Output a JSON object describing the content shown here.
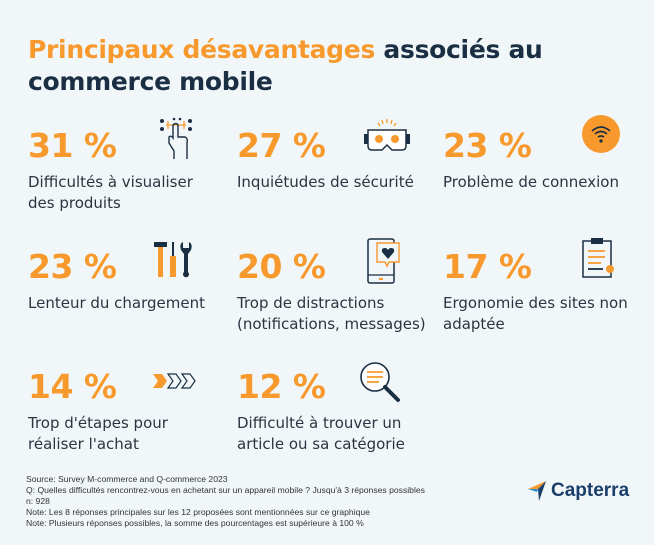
{
  "title": {
    "highlight": "Principaux désavantages",
    "rest_line1": " associés au",
    "line2": "commerce mobile"
  },
  "items": [
    {
      "percent": "31 %",
      "label_line1": "Difficultés à visualiser",
      "label_line2": "des produits",
      "icon": "touch-gesture-icon"
    },
    {
      "percent": "27 %",
      "label_line1": "Inquiétudes de sécurité",
      "label_line2": "",
      "icon": "vr-headset-icon"
    },
    {
      "percent": "23 %",
      "label_line1": "Problème de connexion",
      "label_line2": "",
      "icon": "wifi-icon"
    },
    {
      "percent": "23 %",
      "label_line1": "Lenteur du chargement",
      "label_line2": "",
      "icon": "tools-icon"
    },
    {
      "percent": "20 %",
      "label_line1": "Trop de distractions",
      "label_line2": "(notifications, messages)",
      "icon": "phone-notification-icon"
    },
    {
      "percent": "17 %",
      "label_line1": "Ergonomie des sites non",
      "label_line2": "adaptée",
      "icon": "clipboard-error-icon"
    },
    {
      "percent": "14 %",
      "label_line1": "Trop d'étapes pour",
      "label_line2": "réaliser l'achat",
      "icon": "steps-chevrons-icon"
    },
    {
      "percent": "12 %",
      "label_line1": "Difficulté à trouver un",
      "label_line2": "article ou sa catégorie",
      "icon": "magnifier-icon"
    }
  ],
  "footer": {
    "source": "Source: Survey M-commerce and Q-commerce 2023",
    "question": "Q:  Quelles difficultés rencontrez-vous en achetant sur un appareil mobile ? Jusqu'à 3 réponses possibles",
    "n": "n: 928",
    "note1": "Note: Les 8 réponses principales sur les 12 proposées sont mentionnées sur ce graphique",
    "note2": "Note: Plusieurs réponses possibles, la somme des pourcentages est supérieure à 100 %"
  },
  "brand": {
    "name": "Capterra"
  },
  "colors": {
    "accent": "#f7992c",
    "navy": "#1b2f44",
    "background": "#f1f7f8"
  }
}
